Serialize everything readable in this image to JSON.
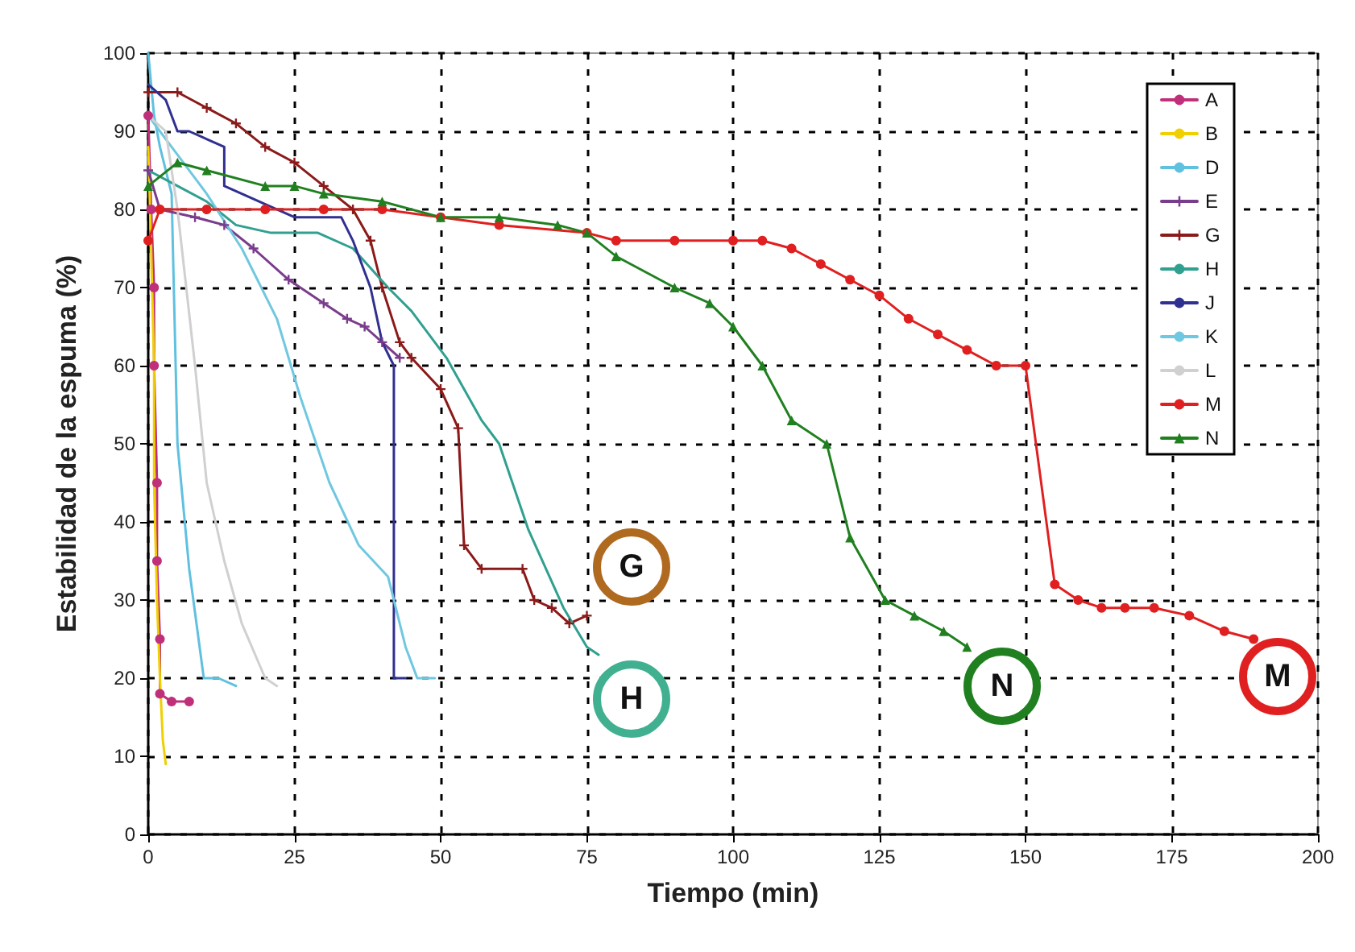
{
  "chart_data": {
    "type": "line",
    "xlabel": "Tiempo (min)",
    "ylabel": "Estabilidad de la espuma (%)",
    "xlim": [
      0,
      200
    ],
    "xticks": [
      0,
      25,
      50,
      75,
      100,
      125,
      150,
      175,
      200
    ],
    "ylim": [
      0,
      100
    ],
    "yticks": [
      0,
      10,
      20,
      30,
      40,
      50,
      60,
      70,
      80,
      90,
      100
    ],
    "grid": true,
    "legend": "top right",
    "line_style": "solid",
    "series": [
      {
        "name": "A",
        "color": "#c0307a",
        "marker": "circle",
        "x": [
          0,
          0.5,
          1,
          1,
          1.5,
          1.5,
          2,
          2,
          4,
          7
        ],
        "values": [
          92,
          80,
          70,
          60,
          45,
          35,
          25,
          18,
          17,
          17
        ]
      },
      {
        "name": "B",
        "color": "#f0d000",
        "marker": "none",
        "x": [
          0,
          0.5,
          1,
          1,
          1.5,
          2,
          2.5,
          3
        ],
        "values": [
          88,
          75,
          60,
          45,
          30,
          20,
          12,
          9
        ]
      },
      {
        "name": "D",
        "color": "#60c0e0",
        "marker": "none",
        "x": [
          0,
          1,
          2,
          4,
          5,
          7,
          9.5,
          12,
          15
        ],
        "values": [
          100,
          92,
          88,
          82,
          50,
          34,
          20,
          20,
          19
        ]
      },
      {
        "name": "E",
        "color": "#7a3c8c",
        "marker": "cross",
        "x": [
          0,
          2,
          8,
          13,
          18,
          24,
          30,
          34,
          37,
          40,
          43
        ],
        "values": [
          85,
          80,
          79,
          78,
          75,
          71,
          68,
          66,
          65,
          63,
          61
        ]
      },
      {
        "name": "G",
        "color": "#8b1a1a",
        "marker": "cross",
        "x": [
          0,
          5,
          10,
          15,
          20,
          25,
          30,
          35,
          38,
          40,
          43,
          45,
          50,
          53,
          54,
          57,
          64,
          66,
          69,
          72,
          75
        ],
        "values": [
          95,
          95,
          93,
          91,
          88,
          86,
          83,
          80,
          76,
          70,
          63,
          61,
          57,
          52,
          37,
          34,
          34,
          30,
          29,
          27,
          28
        ]
      },
      {
        "name": "H",
        "color": "#30a090",
        "marker": "none",
        "x": [
          0,
          5,
          10,
          15,
          21,
          29,
          35,
          41,
          45,
          51,
          57,
          60,
          65,
          71,
          75,
          77
        ],
        "values": [
          85,
          83,
          81,
          78,
          77,
          77,
          75,
          70,
          67,
          61,
          53,
          50,
          39,
          29,
          24,
          23
        ]
      },
      {
        "name": "J",
        "color": "#303090",
        "marker": "none",
        "x": [
          0,
          3,
          5,
          7,
          13,
          13,
          25,
          33,
          35,
          38,
          40,
          42,
          42,
          44
        ],
        "values": [
          96,
          94,
          90,
          90,
          88,
          83,
          79,
          79,
          76,
          70,
          63,
          60,
          20,
          20
        ]
      },
      {
        "name": "K",
        "color": "#70c8e0",
        "marker": "none",
        "x": [
          0,
          2,
          5,
          10,
          16,
          22,
          26,
          31,
          36,
          41,
          44,
          46,
          49
        ],
        "values": [
          92,
          90,
          87,
          82,
          75,
          66,
          56,
          45,
          37,
          33,
          24,
          20,
          20
        ]
      },
      {
        "name": "L",
        "color": "#d0d0d0",
        "marker": "none",
        "x": [
          0,
          3,
          5,
          8,
          10,
          13,
          16,
          20,
          22
        ],
        "values": [
          92,
          90,
          80,
          60,
          45,
          35,
          27,
          20,
          19
        ]
      },
      {
        "name": "M",
        "color": "#e02020",
        "marker": "circle",
        "x": [
          0,
          2,
          10,
          20,
          30,
          40,
          50,
          60,
          75,
          80,
          90,
          100,
          105,
          110,
          115,
          120,
          125,
          130,
          135,
          140,
          145,
          150,
          155,
          159,
          163,
          167,
          172,
          178,
          184,
          189
        ],
        "values": [
          76,
          80,
          80,
          80,
          80,
          80,
          79,
          78,
          77,
          76,
          76,
          76,
          76,
          75,
          73,
          71,
          69,
          66,
          64,
          62,
          60,
          60,
          32,
          30,
          29,
          29,
          29,
          28,
          26,
          25
        ]
      },
      {
        "name": "N",
        "color": "#208020",
        "marker": "triangle",
        "x": [
          0,
          5,
          10,
          20,
          25,
          30,
          40,
          50,
          60,
          70,
          75,
          80,
          90,
          96,
          100,
          105,
          110,
          116,
          120,
          126,
          131,
          136,
          140
        ],
        "values": [
          83,
          86,
          85,
          83,
          83,
          82,
          81,
          79,
          79,
          78,
          77,
          74,
          70,
          68,
          65,
          60,
          53,
          50,
          38,
          30,
          28,
          26,
          24
        ]
      }
    ],
    "annotations": [
      "G",
      "H",
      "N",
      "M"
    ]
  }
}
